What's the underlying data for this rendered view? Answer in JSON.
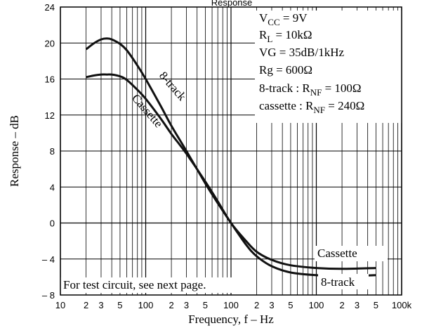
{
  "chart_data": {
    "type": "line",
    "title": "Response",
    "xlabel": "Frequency, f  –  Hz",
    "ylabel": "Response  –  dB",
    "xscale": "log",
    "xlim": [
      10,
      100000
    ],
    "ylim": [
      -8,
      24
    ],
    "grid": true,
    "y_ticks": [
      -8,
      -4,
      0,
      4,
      8,
      12,
      16,
      20,
      24
    ],
    "y_tick_labels": [
      "– 8",
      "– 4",
      "0",
      "4",
      "8",
      "12",
      "16",
      "20",
      "24"
    ],
    "x_major_ticks": [
      {
        "value": 10,
        "label": "10"
      },
      {
        "value": 100,
        "label": "100"
      },
      {
        "value": 1000,
        "label": "100"
      },
      {
        "value": 10000,
        "label": "100"
      },
      {
        "value": 100000,
        "label": "100k"
      }
    ],
    "x_minor_labels": [
      "2",
      "3",
      "5"
    ],
    "series": [
      {
        "name": "8-track",
        "x": [
          20,
          25,
          30,
          35,
          40,
          50,
          60,
          80,
          100,
          150,
          200,
          300,
          500,
          700,
          1000,
          1500,
          2000,
          3000,
          5000,
          10000,
          20000,
          50000
        ],
        "y": [
          19.3,
          20.0,
          20.4,
          20.5,
          20.4,
          19.9,
          19.2,
          17.5,
          16.0,
          13.0,
          10.8,
          8.0,
          4.4,
          2.2,
          0.0,
          -2.4,
          -3.7,
          -4.8,
          -5.5,
          -5.8,
          -5.9,
          -5.8
        ]
      },
      {
        "name": "Cassette",
        "x": [
          20,
          25,
          30,
          35,
          40,
          50,
          60,
          80,
          100,
          150,
          200,
          300,
          500,
          700,
          1000,
          1500,
          2000,
          3000,
          5000,
          10000,
          20000,
          50000
        ],
        "y": [
          16.2,
          16.4,
          16.5,
          16.5,
          16.5,
          16.3,
          15.9,
          14.8,
          13.8,
          11.6,
          9.9,
          7.7,
          4.6,
          2.4,
          0.0,
          -2.0,
          -3.2,
          -4.1,
          -4.7,
          -5.0,
          -5.1,
          -5.0
        ]
      }
    ],
    "curve_labels": {
      "eight_track_upper": "8-track",
      "cassette_upper": "Cassette",
      "cassette_lower": "Cassette",
      "eight_track_lower": "8-track"
    },
    "conditions": {
      "vcc_pre": "V",
      "vcc_sub": "CC",
      "vcc_post": " = 9V",
      "rl_pre": "R",
      "rl_sub": "L",
      "rl_post": " = 10kΩ",
      "vg": "VG = 35dB/1kHz",
      "rg": "Rg = 600Ω",
      "track_pre": "8-track : R",
      "track_sub": "NF",
      "track_post": " = 100Ω",
      "cass_pre": "cassette : R",
      "cass_sub": "NF",
      "cass_post": " = 240Ω"
    },
    "footnote": "For test circuit, see next page."
  }
}
